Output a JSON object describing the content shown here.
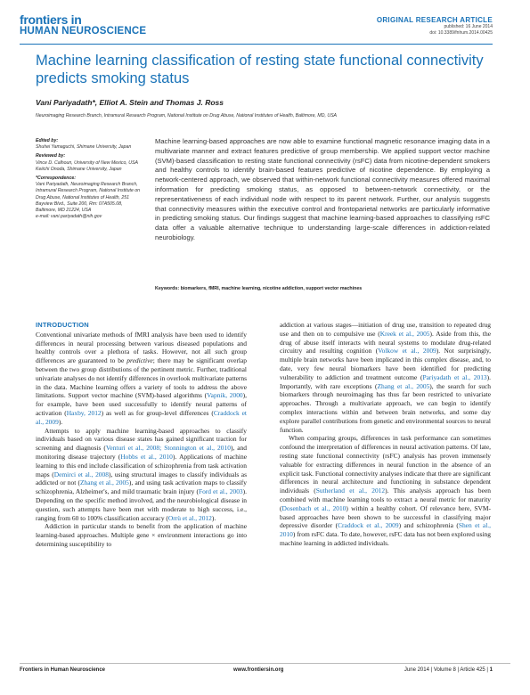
{
  "header": {
    "logo_line1": "frontiers in",
    "logo_line2": "HUMAN NEUROSCIENCE",
    "article_type": "ORIGINAL RESEARCH ARTICLE",
    "published": "published: 16 June 2014",
    "doi": "doi: 10.3389/fnhum.2014.00425"
  },
  "title": "Machine learning classification of resting state functional connectivity predicts smoking status",
  "authors": "Vani Pariyadath*, Elliot A. Stein and Thomas J. Ross",
  "affiliation": "Neuroimaging Research Branch, Intramural Research Program, National Institute on Drug Abuse, National Institutes of Health, Baltimore, MD, USA",
  "sidebar": {
    "edited_by_label": "Edited by:",
    "edited_by": "Shuhei Yamaguchi, Shimane University, Japan",
    "reviewed_by_label": "Reviewed by:",
    "reviewer1": "Vince D. Calhoun, University of New Mexico, USA",
    "reviewer2": "Keiichi Onoda, Shimane University, Japan",
    "correspondence_label": "*Correspondence:",
    "correspondence": "Vani Pariyadath, Neuroimaging Research Branch, Intramural Research Program, National Institute on Drug Abuse, National Institutes of Health, 251 Bayview Blvd., Suite 200, Rm: 07A505.08, Baltimore, MD 21224, USA",
    "email": "e-mail: vani.pariyadath@nih.gov"
  },
  "abstract": "Machine learning-based approaches are now able to examine functional magnetic resonance imaging data in a multivariate manner and extract features predictive of group membership. We applied support vector machine (SVM)-based classification to resting state functional connectivity (rsFC) data from nicotine-dependent smokers and healthy controls to identify brain-based features predictive of nicotine dependence. By employing a network-centered approach, we observed that within-network functional connectivity measures offered maximal information for predicting smoking status, as opposed to between-network connectivity, or the representativeness of each individual node with respect to its parent network. Further, our analysis suggests that connectivity measures within the executive control and frontoparietal networks are particularly informative in predicting smoking status. Our findings suggest that machine learning-based approaches to classifying rsFC data offer a valuable alternative technique to understanding large-scale differences in addiction-related neurobiology.",
  "keywords_label": "Keywords:",
  "keywords": "biomarkers, fMRI, machine learning, nicotine addiction, support vector machines",
  "intro_heading": "INTRODUCTION",
  "left_col": {
    "p1a": "Conventional univariate methods of fMRI analysis have been used to identify differences in neural processing between various diseased populations and healthy controls over a plethora of tasks. However, not all such group differences are guaranteed to be ",
    "p1_em": "predictive",
    "p1b": "; there may be significant overlap between the two group distributions of the pertinent metric. Further, traditional univariate analyses do not identify differences in overlook multivariate patterns in the data. Machine learning offers a variety of tools to address the above limitations. Support vector machine (SVM)-based algorithms (",
    "p1_ref1": "Vapnik, 2000",
    "p1c": "), for example, have been used successfully to identify neural patterns of activation (",
    "p1_ref2": "Haxby, 2012",
    "p1d": ") as well as for group-level differences (",
    "p1_ref3": "Craddock et al., 2009",
    "p1e": ").",
    "p2a": "Attempts to apply machine learning-based approaches to classify individuals based on various disease states has gained significant traction for screening and diagnosis (",
    "p2_ref1": "Venturi et al., 2008; Stonnington et al., 2010",
    "p2b": "), and monitoring disease trajectory (",
    "p2_ref2": "Hobbs et al., 2010",
    "p2c": "). Applications of machine learning to this end include classification of schizophrenia from task activation maps (",
    "p2_ref3": "Demirci et al., 2008",
    "p2d": "), using structural images to classify individuals as addicted or not (",
    "p2_ref4": "Zhang et al., 2005",
    "p2e": "), and using task activation maps to classify schizophrenia, Alzheimer's, and mild traumatic brain injury (",
    "p2_ref5": "Ford et al., 2003",
    "p2f": "). Depending on the specific method involved, and the neurobiological disease in question, such attempts have been met with moderate to high success, i.e., ranging from 60 to 100% classification accuracy (",
    "p2_ref6": "Orrù et al., 2012",
    "p2g": ").",
    "p3": "Addiction in particular stands to benefit from the application of machine learning-based approaches. Multiple gene × environment interactions go into determining susceptibility to"
  },
  "right_col": {
    "p1a": "addiction at various stages—initiation of drug use, transition to repeated drug use and then on to compulsive use (",
    "p1_ref1": "Kreek et al., 2005",
    "p1b": "). Aside from this, the drug of abuse itself interacts with neural systems to modulate drug-related circuitry and resulting cognition (",
    "p1_ref2": "Volkow et al., 2009",
    "p1c": "). Not surprisingly, multiple brain networks have been implicated in this complex disease, and, to date, very few neural biomarkers have been identified for predicting vulnerability to addiction and treatment outcome (",
    "p1_ref3": "Pariyadath et al., 2013",
    "p1d": "). Importantly, with rare exceptions (",
    "p1_ref4": "Zhang et al., 2005",
    "p1e": "), the search for such biomarkers through neuroimaging has thus far been restricted to univariate approaches. Through a multivariate approach, we can begin to identify complex interactions within and between brain networks, and some day explore parallel contributions from genetic and environmental sources to neural function.",
    "p2a": "When comparing groups, differences in task performance can sometimes confound the interpretation of differences in neural activation patterns. Of late, resting state functional connectivity (rsFC) analysis has proven immensely valuable for extracting differences in neural function in the absence of an explicit task. Functional connectivity analyses indicate that there are significant differences in neural architecture and functioning in substance dependent individuals (",
    "p2_ref1": "Sutherland et al., 2012",
    "p2b": "). This analysis approach has been combined with machine learning tools to extract a neural metric for maturity (",
    "p2_ref2": "Dosenbach et al., 2010",
    "p2c": ") within a healthy cohort. Of relevance here, SVM-based approaches have been shown to be successful in classifying major depressive disorder (",
    "p2_ref3": "Craddock et al., 2009",
    "p2d": ") and schizophrenia (",
    "p2_ref4": "Shen et al., 2010",
    "p2e": ") from rsFC data. To date, however, rsFC data has not been explored using machine learning in addicted individuals."
  },
  "footer": {
    "journal": "Frontiers in Human Neuroscience",
    "url": "www.frontiersin.org",
    "issue": "June 2014 | Volume 8 | Article 425 |",
    "page": "1"
  },
  "colors": {
    "accent": "#1a73b8",
    "text": "#222222"
  }
}
